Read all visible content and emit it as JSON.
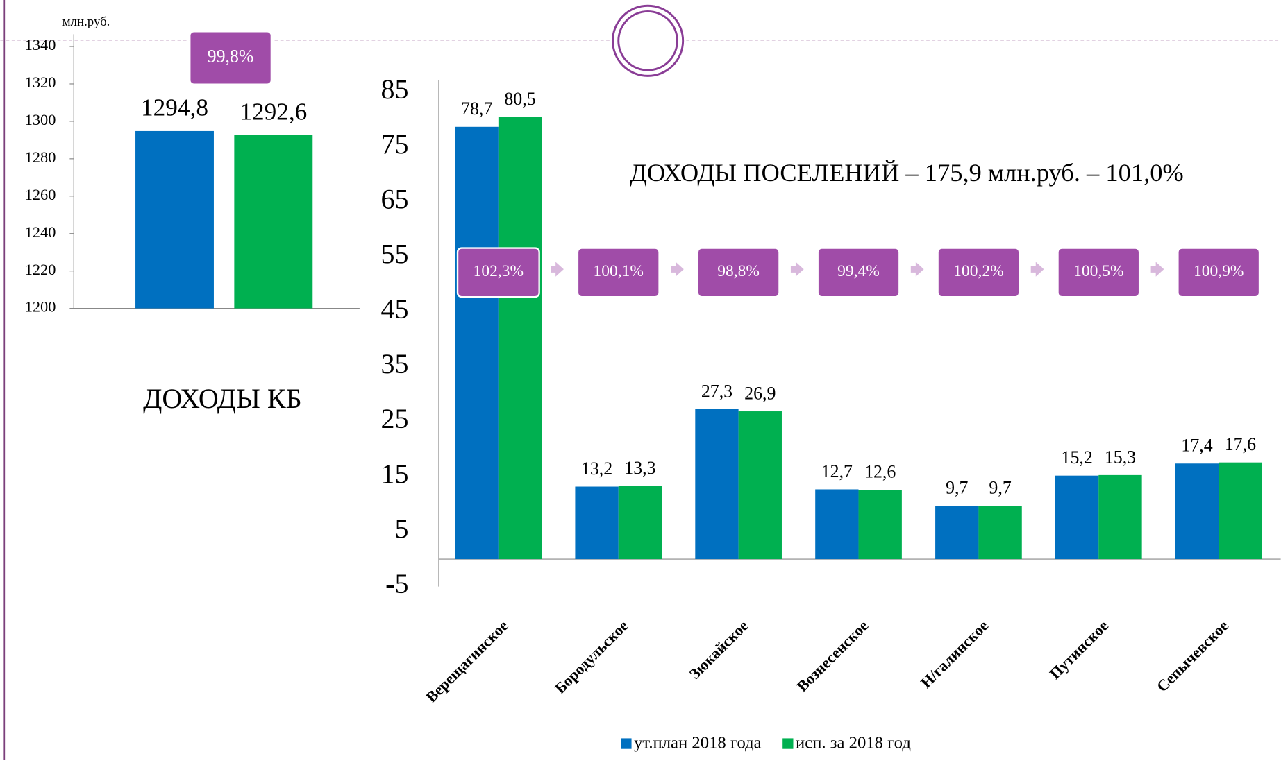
{
  "chart_data": [
    {
      "type": "bar",
      "title": "ДОХОДЫ КБ",
      "y_label": "млн.руб.",
      "annotation": "99,8%",
      "series": [
        {
          "color": "#0070c0",
          "values": [
            1294.8
          ],
          "value_labels": [
            "1294,8"
          ]
        },
        {
          "color": "#00b050",
          "values": [
            1292.6
          ],
          "value_labels": [
            "1292,6"
          ]
        }
      ],
      "ylim": [
        1200,
        1340
      ],
      "yticks": [
        1200,
        1220,
        1240,
        1260,
        1280,
        1300,
        1320,
        1340
      ]
    },
    {
      "type": "bar",
      "title": "ДОХОДЫ ПОСЕЛЕНИЙ – 175,9 млн.руб. – 101,0%",
      "categories": [
        "Верещагинское",
        "Бородульское",
        "Зюкайское",
        "Вознесенское",
        "Н/галинское",
        "Путинское",
        "Сепычевское"
      ],
      "series": [
        {
          "name": "ут.план 2018 года",
          "color": "#0070c0",
          "values": [
            78.7,
            13.2,
            27.3,
            12.7,
            9.7,
            15.2,
            17.4
          ],
          "value_labels": [
            "78,7",
            "13,2",
            "27,3",
            "12,7",
            "9,7",
            "15,2",
            "17,4"
          ]
        },
        {
          "name": "исп. за 2018 год",
          "color": "#00b050",
          "values": [
            80.5,
            13.3,
            26.9,
            12.6,
            9.7,
            15.3,
            17.6
          ],
          "value_labels": [
            "80,5",
            "13,3",
            "26,9",
            "12,6",
            "9,7",
            "15,3",
            "17,6"
          ]
        }
      ],
      "annotations": [
        "102,3%",
        "100,1%",
        "98,8%",
        "99,4%",
        "100,2%",
        "100,5%",
        "100,9%"
      ],
      "ylim": [
        -5,
        85
      ],
      "yticks": [
        -5,
        5,
        15,
        25,
        35,
        45,
        55,
        65,
        75,
        85
      ],
      "legend": "bottom"
    }
  ]
}
